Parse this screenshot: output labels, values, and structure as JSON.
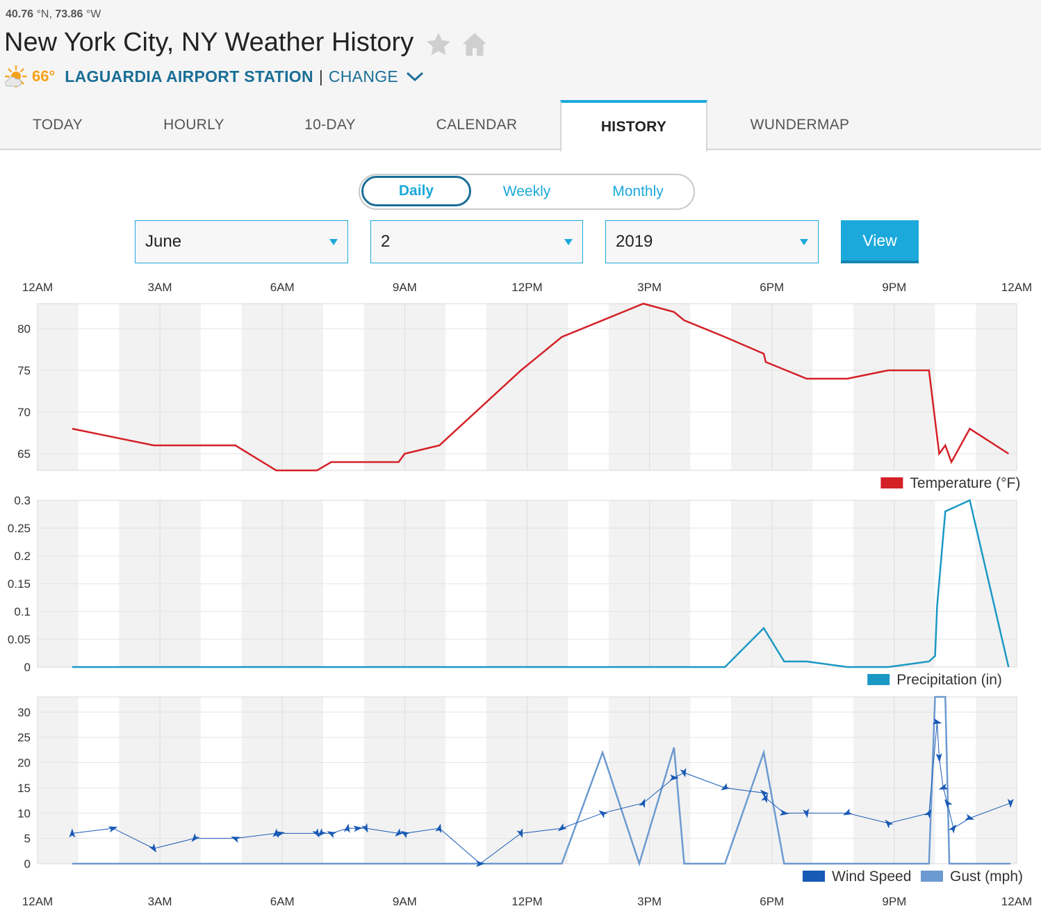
{
  "location": {
    "lat": "40.76",
    "lat_unit": "°N,",
    "lon": "73.86",
    "lon_unit": "°W",
    "title": "New York City, NY Weather History",
    "current_temp": "66°",
    "station": "LAGUARDIA AIRPORT STATION",
    "separator": "|",
    "change": "CHANGE",
    "icons": [
      "favorite-star-icon",
      "home-icon",
      "sun-cloud-icon",
      "chevron-down-icon"
    ]
  },
  "tabs": [
    {
      "label": "TODAY",
      "active": false
    },
    {
      "label": "HOURLY",
      "active": false
    },
    {
      "label": "10-DAY",
      "active": false
    },
    {
      "label": "CALENDAR",
      "active": false
    },
    {
      "label": "HISTORY",
      "active": true
    },
    {
      "label": "WUNDERMAP",
      "active": false
    }
  ],
  "period_toggle": {
    "daily": "Daily",
    "weekly": "Weekly",
    "monthly": "Monthly",
    "selected": "Daily"
  },
  "date_select": {
    "month": "June",
    "day": "2",
    "year": "2019",
    "view_button": "View"
  },
  "colors": {
    "accent": "#1ba9db",
    "brand_dark": "#1a6e96",
    "temp_line": "#d42027",
    "precip_line": "#1a98c4",
    "wind_line": "#1859b5",
    "gust_line": "#6c9ad0",
    "current_temp": "#f7a21b"
  },
  "chart_data": [
    {
      "type": "line",
      "name": "temperature",
      "x_tick_labels": [
        "12AM",
        "3AM",
        "6AM",
        "9AM",
        "12PM",
        "3PM",
        "6PM",
        "9PM",
        "12AM"
      ],
      "y_ticks": [
        "65",
        "70",
        "75",
        "80"
      ],
      "ylim": [
        63,
        83
      ],
      "xlim": [
        0,
        24
      ],
      "grid": true,
      "legend_position": "bottom-right",
      "series": [
        {
          "name": "Temperature (°F)",
          "color": "#d42027",
          "x": [
            0.85,
            2.85,
            4.85,
            5.85,
            6.85,
            7.2,
            8.85,
            9.0,
            9.85,
            11.85,
            12.85,
            14.85,
            15.6,
            15.85,
            16.85,
            17.8,
            17.85,
            18.85,
            19.85,
            20.85,
            21.85,
            22.0,
            22.1,
            22.25,
            22.4,
            22.85,
            23.8
          ],
          "y": [
            68,
            66,
            66,
            63,
            63,
            64,
            64,
            65,
            66,
            75,
            79,
            83,
            82,
            81,
            79,
            77,
            76,
            74,
            74,
            75,
            75,
            69,
            65,
            66,
            64,
            68,
            65
          ]
        }
      ]
    },
    {
      "type": "line",
      "name": "precipitation",
      "x_tick_labels": [],
      "y_ticks": [
        "0",
        "0.05",
        "0.1",
        "0.15",
        "0.2",
        "0.25",
        "0.3"
      ],
      "ylim": [
        0,
        0.3
      ],
      "xlim": [
        0,
        24
      ],
      "grid": true,
      "legend_position": "bottom-right",
      "series": [
        {
          "name": "Precipitation (in)",
          "color": "#1a98c4",
          "x": [
            0.85,
            16.85,
            17.8,
            18.3,
            18.85,
            19.85,
            20.85,
            21.85,
            22.0,
            22.05,
            22.25,
            22.85,
            23.8
          ],
          "y": [
            0,
            0,
            0.07,
            0.01,
            0.01,
            0,
            0,
            0.01,
            0.02,
            0.11,
            0.28,
            0.3,
            0
          ]
        }
      ]
    },
    {
      "type": "line",
      "name": "wind",
      "x_tick_labels": [
        "12AM",
        "3AM",
        "6AM",
        "9AM",
        "12PM",
        "3PM",
        "6PM",
        "9PM",
        "12AM"
      ],
      "y_ticks": [
        "0",
        "5",
        "10",
        "15",
        "20",
        "25",
        "30"
      ],
      "ylim": [
        0,
        33
      ],
      "xlim": [
        0,
        24
      ],
      "grid": true,
      "legend_position": "bottom-right",
      "series": [
        {
          "name": "Wind Speed",
          "color": "#1859b5",
          "x": [
            0.85,
            1.85,
            2.85,
            3.85,
            4.85,
            5.85,
            5.95,
            6.85,
            6.95,
            7.2,
            7.6,
            7.85,
            8.05,
            8.85,
            9.0,
            9.85,
            10.85,
            11.85,
            12.85,
            13.85,
            14.85,
            15.6,
            15.85,
            16.85,
            17.8,
            17.85,
            18.3,
            18.85,
            19.85,
            20.85,
            21.85,
            22.05,
            22.1,
            22.2,
            22.3,
            22.45,
            22.85,
            23.85
          ],
          "y": [
            6,
            7,
            3,
            5,
            5,
            6,
            6,
            6,
            6,
            6,
            7,
            7,
            7,
            6,
            6,
            7,
            0,
            6,
            7,
            10,
            12,
            17,
            18,
            15,
            14,
            13,
            10,
            10,
            10,
            8,
            10,
            28,
            21,
            15,
            12,
            7,
            9,
            12
          ]
        },
        {
          "name": "Gust (mph)",
          "color": "#6c9ad0",
          "x": [
            0.85,
            12.85,
            13.85,
            14.75,
            15.6,
            15.85,
            16.85,
            17.8,
            18.3,
            21.85,
            22.0,
            22.25,
            22.35,
            23.85
          ],
          "y": [
            0,
            0,
            22,
            0,
            23,
            0,
            0,
            22,
            0,
            0,
            33,
            33,
            0,
            0
          ]
        }
      ]
    }
  ]
}
